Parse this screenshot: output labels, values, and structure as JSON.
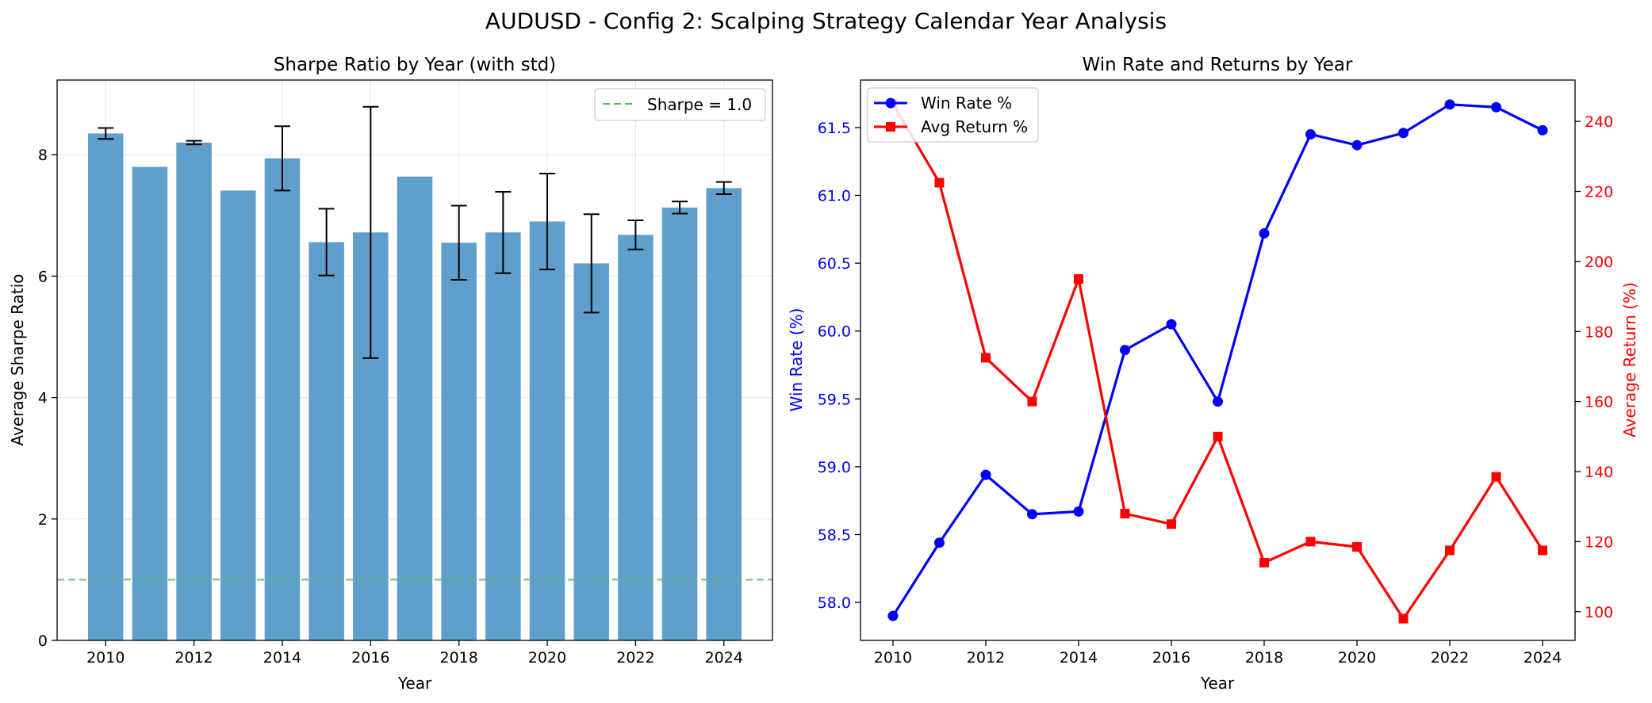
{
  "suptitle": "AUDUSD - Config 2: Scalping Strategy Calendar Year Analysis",
  "chart_data": [
    {
      "type": "bar",
      "title": "Sharpe Ratio by Year (with std)",
      "xlabel": "Year",
      "ylabel": "Average Sharpe Ratio",
      "categories": [
        2010,
        2011,
        2012,
        2013,
        2014,
        2015,
        2016,
        2017,
        2018,
        2019,
        2020,
        2021,
        2022,
        2023,
        2024
      ],
      "values": [
        8.35,
        7.8,
        8.2,
        7.41,
        7.94,
        6.56,
        6.72,
        7.64,
        6.55,
        6.72,
        6.9,
        6.21,
        6.68,
        7.13,
        7.45
      ],
      "std": [
        0.09,
        0.0,
        0.03,
        0.0,
        0.53,
        0.55,
        2.07,
        0.0,
        0.61,
        0.67,
        0.79,
        0.81,
        0.24,
        0.1,
        0.1
      ],
      "bar_color": "#5f9fcc",
      "reference_line": {
        "label": "Sharpe = 1.0",
        "value": 1.0,
        "color": "#5cb85c"
      },
      "legend_position": "top-right",
      "xticks": [
        2010,
        2012,
        2014,
        2016,
        2018,
        2020,
        2022,
        2024
      ],
      "yticks": [
        0,
        2,
        4,
        6,
        8
      ],
      "xlim": [
        2008.9,
        2025.1
      ],
      "ylim": [
        0,
        9.23
      ],
      "grid": true
    },
    {
      "type": "line",
      "title": "Win Rate and Returns by Year",
      "xlabel": "Year",
      "ylabel_left": "Win Rate (%)",
      "ylabel_right": "Average Return (%)",
      "x": [
        2010,
        2011,
        2012,
        2013,
        2014,
        2015,
        2016,
        2017,
        2018,
        2019,
        2020,
        2021,
        2022,
        2023,
        2024
      ],
      "series": [
        {
          "name": "Win Rate %",
          "axis": "left",
          "color": "#0000ff",
          "marker": "circle",
          "values": [
            57.9,
            58.44,
            58.94,
            58.65,
            58.67,
            59.86,
            60.05,
            59.48,
            60.72,
            61.45,
            61.37,
            61.46,
            61.67,
            61.65,
            61.48
          ]
        },
        {
          "name": "Avg Return %",
          "axis": "right",
          "color": "#ff0000",
          "marker": "square",
          "values": [
            245,
            222.5,
            172.5,
            160,
            195,
            128,
            125,
            150,
            114,
            120,
            118.5,
            98,
            117.5,
            138.5,
            117.5
          ]
        }
      ],
      "legend_position": "top-left",
      "xticks": [
        2010,
        2012,
        2014,
        2016,
        2018,
        2020,
        2022,
        2024
      ],
      "yticks_left": [
        "58.0",
        "58.5",
        "59.0",
        "59.5",
        "60.0",
        "60.5",
        "61.0",
        "61.5"
      ],
      "yticks_right": [
        100,
        120,
        140,
        160,
        180,
        200,
        220,
        240
      ],
      "xlim": [
        2009.3,
        2024.7
      ],
      "ylim_left": [
        57.72,
        61.85
      ],
      "ylim_right": [
        91.8,
        251.8
      ],
      "grid": false
    }
  ]
}
